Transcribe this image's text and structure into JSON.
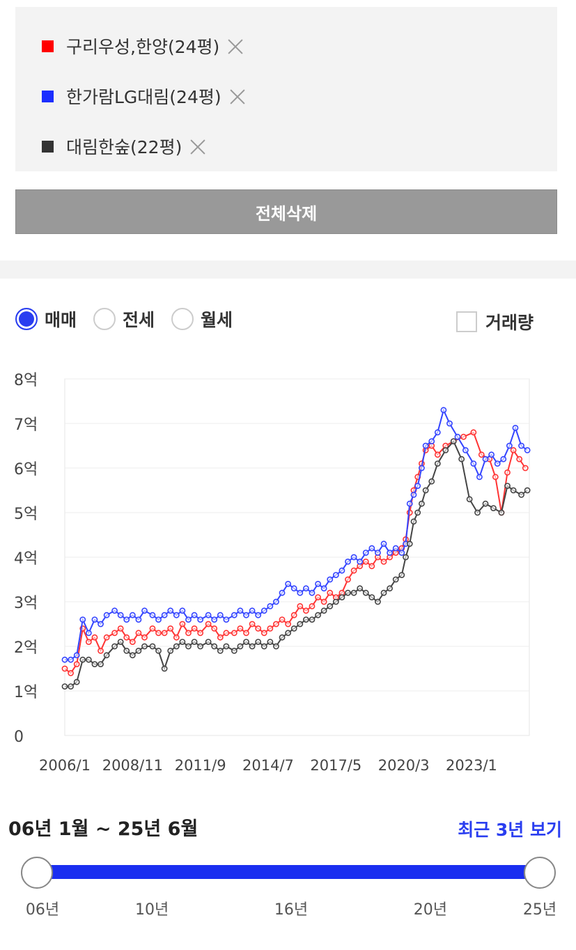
{
  "compare": {
    "items": [
      {
        "label": "구리우성,한양(24평)",
        "color": "#ff0000"
      },
      {
        "label": "한가람LG대림(24평)",
        "color": "#1b2eff"
      },
      {
        "label": "대림한숲(22평)",
        "color": "#333333"
      }
    ],
    "delete_all_label": "전체삭제"
  },
  "trade_types": [
    {
      "label": "매매",
      "selected": true
    },
    {
      "label": "전세",
      "selected": false
    },
    {
      "label": "월세",
      "selected": false
    }
  ],
  "volume_label": "거래량",
  "chart_data": {
    "type": "line",
    "y_ticks": [
      "0",
      "1억",
      "2억",
      "3억",
      "4억",
      "5억",
      "6억",
      "7억",
      "8억"
    ],
    "ylim": [
      0,
      8
    ],
    "x_ticks": [
      {
        "label": "2006/1",
        "t": 0
      },
      {
        "label": "2008/11",
        "t": 34
      },
      {
        "label": "2011/9",
        "t": 68
      },
      {
        "label": "2014/7",
        "t": 102
      },
      {
        "label": "2017/5",
        "t": 136
      },
      {
        "label": "2020/3",
        "t": 170
      },
      {
        "label": "2023/1",
        "t": 204
      }
    ],
    "xlim": [
      0,
      233
    ],
    "series": [
      {
        "name": "구리우성,한양(24평)",
        "color": "#ff3333",
        "points": [
          [
            0,
            1.5
          ],
          [
            3,
            1.4
          ],
          [
            6,
            1.6
          ],
          [
            9,
            2.4
          ],
          [
            12,
            2.1
          ],
          [
            15,
            2.2
          ],
          [
            18,
            1.9
          ],
          [
            21,
            2.2
          ],
          [
            25,
            2.3
          ],
          [
            28,
            2.4
          ],
          [
            31,
            2.2
          ],
          [
            34,
            2.1
          ],
          [
            37,
            2.3
          ],
          [
            40,
            2.2
          ],
          [
            44,
            2.4
          ],
          [
            47,
            2.3
          ],
          [
            50,
            2.3
          ],
          [
            53,
            2.4
          ],
          [
            56,
            2.2
          ],
          [
            59,
            2.5
          ],
          [
            62,
            2.3
          ],
          [
            65,
            2.4
          ],
          [
            68,
            2.3
          ],
          [
            72,
            2.5
          ],
          [
            75,
            2.4
          ],
          [
            78,
            2.2
          ],
          [
            81,
            2.3
          ],
          [
            85,
            2.3
          ],
          [
            88,
            2.4
          ],
          [
            91,
            2.3
          ],
          [
            94,
            2.5
          ],
          [
            97,
            2.4
          ],
          [
            100,
            2.3
          ],
          [
            103,
            2.4
          ],
          [
            106,
            2.5
          ],
          [
            109,
            2.6
          ],
          [
            112,
            2.5
          ],
          [
            115,
            2.7
          ],
          [
            118,
            2.9
          ],
          [
            121,
            2.8
          ],
          [
            124,
            2.9
          ],
          [
            127,
            3.1
          ],
          [
            130,
            3.0
          ],
          [
            133,
            3.2
          ],
          [
            136,
            3.1
          ],
          [
            139,
            3.2
          ],
          [
            142,
            3.5
          ],
          [
            145,
            3.7
          ],
          [
            148,
            3.8
          ],
          [
            151,
            3.9
          ],
          [
            154,
            3.8
          ],
          [
            157,
            4.0
          ],
          [
            160,
            3.9
          ],
          [
            163,
            4.0
          ],
          [
            166,
            4.1
          ],
          [
            169,
            4.2
          ],
          [
            171,
            4.4
          ],
          [
            173,
            5.0
          ],
          [
            175,
            5.5
          ],
          [
            177,
            5.8
          ],
          [
            179,
            6.1
          ],
          [
            181,
            6.4
          ],
          [
            184,
            6.5
          ],
          [
            187,
            6.3
          ],
          [
            191,
            6.5
          ],
          [
            195,
            6.6
          ],
          [
            200,
            6.7
          ],
          [
            205,
            6.8
          ],
          [
            209,
            6.3
          ],
          [
            213,
            6.2
          ],
          [
            216,
            5.8
          ],
          [
            219,
            5.0
          ],
          [
            222,
            5.9
          ],
          [
            225,
            6.4
          ],
          [
            228,
            6.2
          ],
          [
            231,
            6.0
          ]
        ]
      },
      {
        "name": "한가람LG대림(24평)",
        "color": "#3344ff",
        "points": [
          [
            0,
            1.7
          ],
          [
            3,
            1.7
          ],
          [
            6,
            1.8
          ],
          [
            9,
            2.6
          ],
          [
            12,
            2.3
          ],
          [
            15,
            2.6
          ],
          [
            18,
            2.5
          ],
          [
            21,
            2.7
          ],
          [
            25,
            2.8
          ],
          [
            28,
            2.7
          ],
          [
            31,
            2.6
          ],
          [
            34,
            2.7
          ],
          [
            37,
            2.6
          ],
          [
            40,
            2.8
          ],
          [
            44,
            2.7
          ],
          [
            47,
            2.6
          ],
          [
            50,
            2.7
          ],
          [
            53,
            2.8
          ],
          [
            56,
            2.7
          ],
          [
            59,
            2.8
          ],
          [
            62,
            2.6
          ],
          [
            65,
            2.7
          ],
          [
            68,
            2.6
          ],
          [
            72,
            2.7
          ],
          [
            75,
            2.6
          ],
          [
            78,
            2.7
          ],
          [
            81,
            2.6
          ],
          [
            85,
            2.7
          ],
          [
            88,
            2.8
          ],
          [
            91,
            2.7
          ],
          [
            94,
            2.8
          ],
          [
            97,
            2.7
          ],
          [
            100,
            2.8
          ],
          [
            103,
            2.9
          ],
          [
            106,
            3.0
          ],
          [
            109,
            3.2
          ],
          [
            112,
            3.4
          ],
          [
            115,
            3.3
          ],
          [
            118,
            3.2
          ],
          [
            121,
            3.3
          ],
          [
            124,
            3.2
          ],
          [
            127,
            3.4
          ],
          [
            130,
            3.3
          ],
          [
            133,
            3.5
          ],
          [
            136,
            3.6
          ],
          [
            139,
            3.7
          ],
          [
            142,
            3.9
          ],
          [
            145,
            4.0
          ],
          [
            148,
            3.9
          ],
          [
            151,
            4.1
          ],
          [
            154,
            4.2
          ],
          [
            157,
            4.1
          ],
          [
            160,
            4.3
          ],
          [
            163,
            4.1
          ],
          [
            166,
            4.2
          ],
          [
            169,
            4.1
          ],
          [
            171,
            4.3
          ],
          [
            173,
            5.2
          ],
          [
            175,
            5.4
          ],
          [
            177,
            5.6
          ],
          [
            179,
            6.0
          ],
          [
            181,
            6.5
          ],
          [
            184,
            6.6
          ],
          [
            187,
            6.8
          ],
          [
            190,
            7.3
          ],
          [
            193,
            7.0
          ],
          [
            197,
            6.7
          ],
          [
            201,
            6.4
          ],
          [
            205,
            6.1
          ],
          [
            208,
            5.8
          ],
          [
            211,
            6.2
          ],
          [
            214,
            6.3
          ],
          [
            217,
            6.1
          ],
          [
            220,
            6.2
          ],
          [
            223,
            6.5
          ],
          [
            226,
            6.9
          ],
          [
            229,
            6.5
          ],
          [
            232,
            6.4
          ]
        ]
      },
      {
        "name": "대림한숲(22평)",
        "color": "#444444",
        "points": [
          [
            0,
            1.1
          ],
          [
            3,
            1.1
          ],
          [
            6,
            1.2
          ],
          [
            9,
            1.7
          ],
          [
            12,
            1.7
          ],
          [
            15,
            1.6
          ],
          [
            18,
            1.6
          ],
          [
            21,
            1.8
          ],
          [
            25,
            2.0
          ],
          [
            28,
            2.1
          ],
          [
            31,
            1.9
          ],
          [
            34,
            1.8
          ],
          [
            37,
            1.9
          ],
          [
            40,
            2.0
          ],
          [
            44,
            2.0
          ],
          [
            47,
            1.9
          ],
          [
            50,
            1.5
          ],
          [
            53,
            1.9
          ],
          [
            56,
            2.0
          ],
          [
            59,
            2.1
          ],
          [
            62,
            2.0
          ],
          [
            65,
            2.1
          ],
          [
            68,
            2.0
          ],
          [
            72,
            2.1
          ],
          [
            75,
            2.0
          ],
          [
            78,
            1.9
          ],
          [
            81,
            2.0
          ],
          [
            85,
            1.9
          ],
          [
            88,
            2.0
          ],
          [
            91,
            2.1
          ],
          [
            94,
            2.0
          ],
          [
            97,
            2.1
          ],
          [
            100,
            2.0
          ],
          [
            103,
            2.1
          ],
          [
            106,
            2.0
          ],
          [
            109,
            2.2
          ],
          [
            112,
            2.3
          ],
          [
            115,
            2.4
          ],
          [
            118,
            2.5
          ],
          [
            121,
            2.6
          ],
          [
            124,
            2.6
          ],
          [
            127,
            2.7
          ],
          [
            130,
            2.8
          ],
          [
            133,
            2.9
          ],
          [
            136,
            3.0
          ],
          [
            139,
            3.1
          ],
          [
            142,
            3.2
          ],
          [
            145,
            3.2
          ],
          [
            148,
            3.3
          ],
          [
            151,
            3.2
          ],
          [
            154,
            3.1
          ],
          [
            157,
            3.0
          ],
          [
            160,
            3.2
          ],
          [
            163,
            3.3
          ],
          [
            166,
            3.5
          ],
          [
            169,
            3.6
          ],
          [
            171,
            4.0
          ],
          [
            173,
            4.3
          ],
          [
            175,
            4.8
          ],
          [
            177,
            5.0
          ],
          [
            179,
            5.2
          ],
          [
            181,
            5.5
          ],
          [
            184,
            5.7
          ],
          [
            187,
            6.1
          ],
          [
            191,
            6.4
          ],
          [
            195,
            6.6
          ],
          [
            199,
            6.2
          ],
          [
            203,
            5.3
          ],
          [
            207,
            5.0
          ],
          [
            211,
            5.2
          ],
          [
            215,
            5.1
          ],
          [
            219,
            5.0
          ],
          [
            222,
            5.6
          ],
          [
            225,
            5.5
          ],
          [
            229,
            5.4
          ],
          [
            232,
            5.5
          ]
        ]
      }
    ]
  },
  "range": {
    "label": "06년 1월 ~ 25년 6월",
    "recent_link": "최근 3년 보기",
    "ticks": [
      {
        "label": "06년",
        "pos": 0.0
      },
      {
        "label": "10년",
        "pos": 0.22
      },
      {
        "label": "16년",
        "pos": 0.5
      },
      {
        "label": "20년",
        "pos": 0.78
      },
      {
        "label": "25년",
        "pos": 1.0
      }
    ]
  }
}
